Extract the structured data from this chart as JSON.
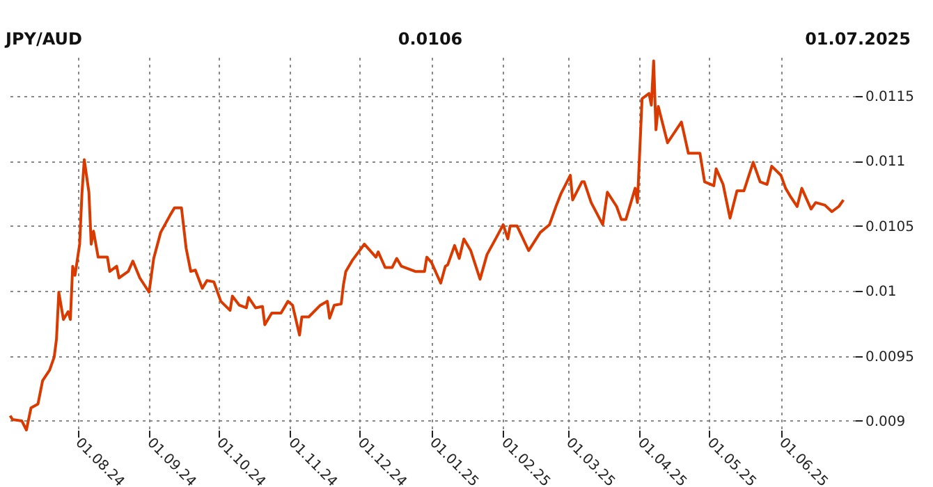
{
  "chart_data": {
    "type": "line",
    "title": "JPY/AUD",
    "annotations": [
      "0.0106",
      "01.07.2025"
    ],
    "x": [
      "2024-07-03",
      "2024-07-04",
      "2024-07-08",
      "2024-07-10",
      "2024-07-12",
      "2024-07-15",
      "2024-07-17",
      "2024-07-20",
      "2024-07-22",
      "2024-07-23",
      "2024-07-24",
      "2024-07-26",
      "2024-07-28",
      "2024-07-29",
      "2024-07-30",
      "2024-07-31",
      "2024-08-02",
      "2024-08-03",
      "2024-08-04",
      "2024-08-06",
      "2024-08-07",
      "2024-08-08",
      "2024-08-10",
      "2024-08-14",
      "2024-08-15",
      "2024-08-18",
      "2024-08-19",
      "2024-08-23",
      "2024-08-25",
      "2024-08-28",
      "2024-09-01",
      "2024-09-03",
      "2024-09-06",
      "2024-09-10",
      "2024-09-12",
      "2024-09-15",
      "2024-09-17",
      "2024-09-19",
      "2024-09-21",
      "2024-09-24",
      "2024-09-26",
      "2024-09-29",
      "2024-10-02",
      "2024-10-06",
      "2024-10-07",
      "2024-10-10",
      "2024-10-13",
      "2024-10-14",
      "2024-10-17",
      "2024-10-20",
      "2024-10-21",
      "2024-10-24",
      "2024-10-28",
      "2024-10-31",
      "2024-11-02",
      "2024-11-05",
      "2024-11-06",
      "2024-11-09",
      "2024-11-14",
      "2024-11-17",
      "2024-11-18",
      "2024-11-20",
      "2024-11-23",
      "2024-11-24",
      "2024-11-25",
      "2024-11-28",
      "2024-12-03",
      "2024-12-08",
      "2024-12-09",
      "2024-12-12",
      "2024-12-15",
      "2024-12-17",
      "2024-12-19",
      "2024-12-25",
      "2024-12-29",
      "2024-12-30",
      "2025-01-01",
      "2025-01-05",
      "2025-01-07",
      "2025-01-08",
      "2025-01-11",
      "2025-01-13",
      "2025-01-15",
      "2025-01-18",
      "2025-01-22",
      "2025-01-25",
      "2025-01-29",
      "2025-02-01",
      "2025-02-03",
      "2025-02-04",
      "2025-02-07",
      "2025-02-12",
      "2025-02-17",
      "2025-02-21",
      "2025-02-24",
      "2025-02-26",
      "2025-03-02",
      "2025-03-03",
      "2025-03-07",
      "2025-03-08",
      "2025-03-11",
      "2025-03-16",
      "2025-03-18",
      "2025-03-22",
      "2025-03-24",
      "2025-03-26",
      "2025-03-30",
      "2025-03-31",
      "2025-04-02",
      "2025-04-05",
      "2025-04-06",
      "2025-04-07",
      "2025-04-08",
      "2025-04-09",
      "2025-04-13",
      "2025-04-19",
      "2025-04-22",
      "2025-04-27",
      "2025-04-29",
      "2025-05-03",
      "2025-05-04",
      "2025-05-07",
      "2025-05-10",
      "2025-05-13",
      "2025-05-16",
      "2025-05-20",
      "2025-05-23",
      "2025-05-26",
      "2025-05-28",
      "2025-06-01",
      "2025-06-03",
      "2025-06-05",
      "2025-06-08",
      "2025-06-10",
      "2025-06-14",
      "2025-06-16",
      "2025-06-20",
      "2025-06-23",
      "2025-06-26",
      "2025-06-28"
    ],
    "series": [
      {
        "color": "#d83a00",
        "values": [
          0.00904,
          0.00901,
          0.009,
          0.00893,
          0.0091,
          0.00913,
          0.00931,
          0.00939,
          0.00949,
          0.00963,
          0.00999,
          0.00978,
          0.00984,
          0.00978,
          0.01019,
          0.01012,
          0.01036,
          0.01075,
          0.01101,
          0.01076,
          0.01036,
          0.01046,
          0.01026,
          0.01026,
          0.01015,
          0.01019,
          0.0101,
          0.01015,
          0.01023,
          0.0101,
          0.00999,
          0.01025,
          0.01045,
          0.01058,
          0.01064,
          0.01064,
          0.01033,
          0.01015,
          0.01016,
          0.01002,
          0.01008,
          0.01007,
          0.00992,
          0.00985,
          0.00996,
          0.00989,
          0.00987,
          0.00995,
          0.00987,
          0.00988,
          0.00974,
          0.00983,
          0.00983,
          0.00992,
          0.00989,
          0.00966,
          0.0098,
          0.0098,
          0.00989,
          0.00992,
          0.00979,
          0.00989,
          0.0099,
          0.01005,
          0.01015,
          0.01024,
          0.01036,
          0.01026,
          0.0103,
          0.01018,
          0.01018,
          0.01025,
          0.01019,
          0.01015,
          0.01015,
          0.01026,
          0.01022,
          0.01006,
          0.01019,
          0.0102,
          0.01035,
          0.01025,
          0.0104,
          0.01031,
          0.01009,
          0.01028,
          0.01041,
          0.01051,
          0.0104,
          0.0105,
          0.0105,
          0.01031,
          0.01045,
          0.01051,
          0.01066,
          0.01075,
          0.01089,
          0.0107,
          0.01084,
          0.01084,
          0.01068,
          0.01051,
          0.01076,
          0.01065,
          0.01055,
          0.01055,
          0.01079,
          0.01068,
          0.01148,
          0.01152,
          0.01143,
          0.01177,
          0.01124,
          0.01142,
          0.01114,
          0.0113,
          0.01106,
          0.01106,
          0.01084,
          0.01081,
          0.01094,
          0.01082,
          0.01056,
          0.01077,
          0.01077,
          0.01099,
          0.01084,
          0.01082,
          0.01096,
          0.01089,
          0.01079,
          0.01073,
          0.01065,
          0.01079,
          0.01063,
          0.01068,
          0.01066,
          0.01061,
          0.01065,
          0.0107
        ]
      }
    ],
    "xlim": [
      "2024-07-01",
      "2025-07-03"
    ],
    "xticks": [
      {
        "value": "2024-08-01",
        "label": "01.08.24"
      },
      {
        "value": "2024-09-01",
        "label": "01.09.24"
      },
      {
        "value": "2024-10-01",
        "label": "01.10.24"
      },
      {
        "value": "2024-11-01",
        "label": "01.11.24"
      },
      {
        "value": "2024-12-01",
        "label": "01.12.24"
      },
      {
        "value": "2025-01-01",
        "label": "01.01.25"
      },
      {
        "value": "2025-02-01",
        "label": "01.02.25"
      },
      {
        "value": "2025-03-01",
        "label": "01.03.25"
      },
      {
        "value": "2025-04-01",
        "label": "01.04.25"
      },
      {
        "value": "2025-05-01",
        "label": "01.05.25"
      },
      {
        "value": "2025-06-01",
        "label": "01.06.25"
      }
    ],
    "ylim": [
      0.00893,
      0.0118
    ],
    "yticks": [
      0.009,
      0.0095,
      0.01,
      0.0105,
      0.011,
      0.0115
    ],
    "grid": true,
    "legend": false,
    "marker": "none",
    "line_style": "solid"
  }
}
